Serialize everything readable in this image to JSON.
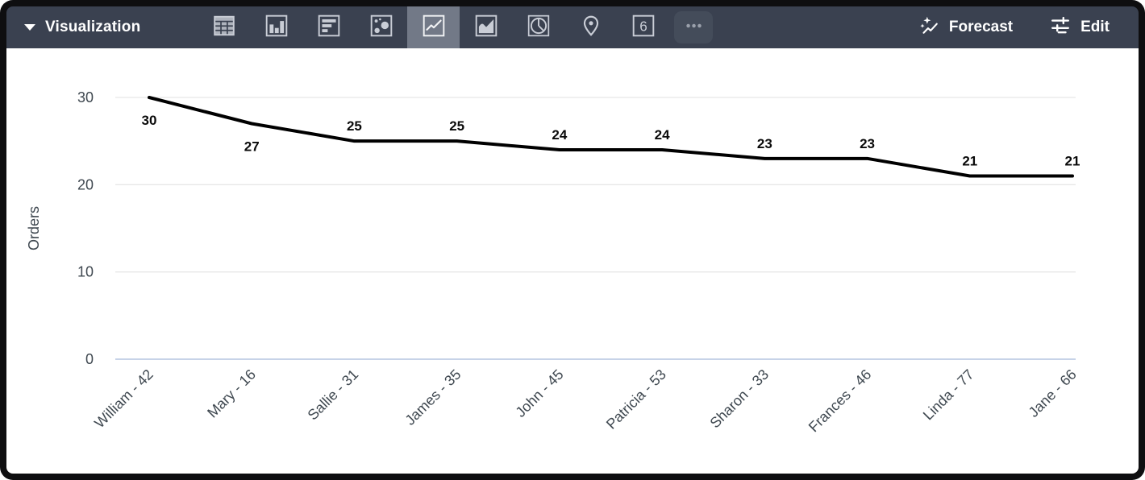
{
  "toolbar": {
    "visualization_label": "Visualization",
    "forecast_label": "Forecast",
    "edit_label": "Edit",
    "single_value_icon_text": "6",
    "chart_types": [
      {
        "name": "table",
        "selected": false
      },
      {
        "name": "column",
        "selected": false
      },
      {
        "name": "bar",
        "selected": false
      },
      {
        "name": "scatter",
        "selected": false
      },
      {
        "name": "line",
        "selected": true
      },
      {
        "name": "area",
        "selected": false
      },
      {
        "name": "pie",
        "selected": false
      },
      {
        "name": "map",
        "selected": false
      },
      {
        "name": "single-value",
        "selected": false
      },
      {
        "name": "more",
        "selected": false
      }
    ]
  },
  "chart_data": {
    "type": "line",
    "title": "",
    "xlabel": "",
    "ylabel": "Orders",
    "categories": [
      "William - 42",
      "Mary - 16",
      "Sallie - 31",
      "James - 35",
      "John - 45",
      "Patricia - 53",
      "Sharon - 33",
      "Frances - 46",
      "Linda - 77",
      "Jane - 66"
    ],
    "values": [
      30,
      27,
      25,
      25,
      24,
      24,
      23,
      23,
      21,
      21
    ],
    "data_labels": [
      "30",
      "27",
      "25",
      "25",
      "24",
      "24",
      "23",
      "23",
      "21",
      "21"
    ],
    "label_placement": [
      "below",
      "below",
      "above",
      "above",
      "above",
      "above",
      "above",
      "above",
      "above",
      "above"
    ],
    "yticks": [
      0,
      10,
      20,
      30
    ],
    "ylim": [
      0,
      30
    ],
    "grid": true,
    "legend": "none",
    "series_color": "#000000"
  },
  "colors": {
    "toolbar_bg": "#3a4150",
    "selected_tile_bg": "#727987",
    "icon_color": "#c9cdd6",
    "line_color": "#000000",
    "grid_color": "#e7e7e7",
    "zero_line_color": "#c7d3e8",
    "axis_text": "#3f4850",
    "data_label_color": "#0a0a0a"
  }
}
